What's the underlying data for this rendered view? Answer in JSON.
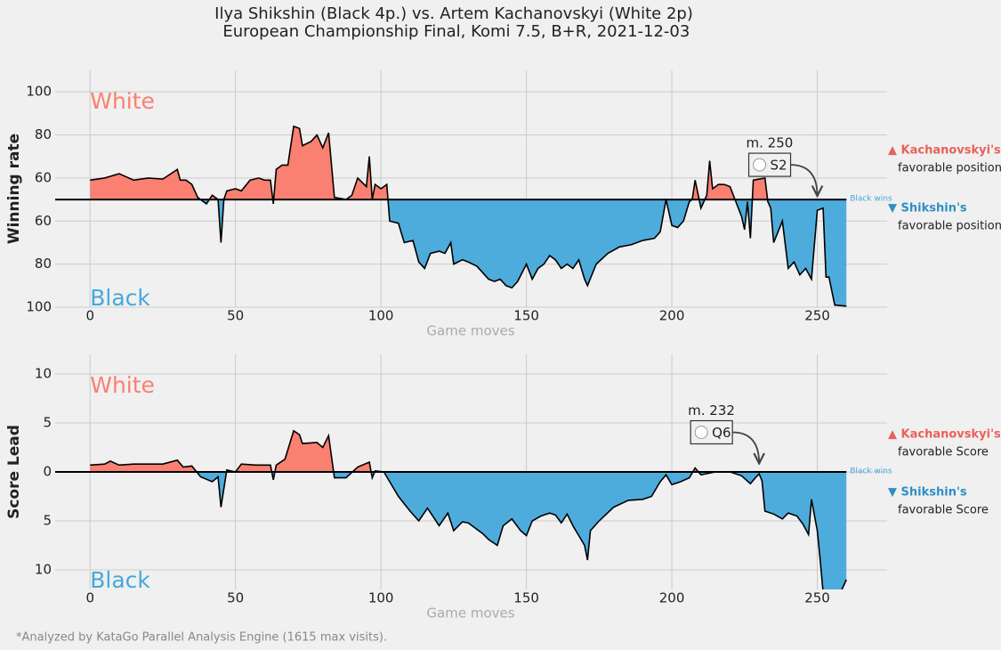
{
  "title": [
    "Ilya Shikshin (Black 4p.) vs. Artem Kachanovskyi (White 2p)",
    " European Championship Final, Komi 7.5, B+R, 2021-12-03"
  ],
  "footnote": "*Analyzed by KataGo Parallel Analysis Engine (1615 max visits).",
  "chart_data": [
    {
      "type": "area",
      "ylabel": "Winning rate",
      "xlabel": "Game moves",
      "upper_label": "White",
      "lower_label": "Black",
      "end_label": "Black wins",
      "upper_color": "#fa8072",
      "lower_color": "#45a8db",
      "baseline": 50,
      "xlim": [
        -12,
        274
      ],
      "xticks": [
        0,
        50,
        100,
        150,
        200,
        250
      ],
      "ylim": [
        0,
        110
      ],
      "yticks": [
        100,
        80,
        60,
        {
          "value": 40,
          "label": "60"
        },
        {
          "value": 20,
          "label": "80"
        },
        {
          "value": 0,
          "label": "100"
        }
      ],
      "grid": true,
      "annotation": {
        "text": "m. 250",
        "label": "S2",
        "x": 250,
        "y": 50
      },
      "legend": [
        {
          "name": "▲ Kachanovskyi's",
          "desc": "favorable position",
          "color": "#e8615a"
        },
        {
          "name": "▼ Shikshin's",
          "desc": "favorable position",
          "color": "#2f8fc4"
        }
      ],
      "x": [
        0,
        5,
        10,
        15,
        20,
        25,
        30,
        31,
        33,
        35,
        37,
        40,
        42,
        44,
        45,
        46,
        47,
        50,
        52,
        55,
        58,
        60,
        62,
        63,
        64,
        66,
        68,
        70,
        72,
        73,
        76,
        78,
        80,
        82,
        84,
        88,
        90,
        92,
        95,
        96,
        97,
        98,
        100,
        102,
        103,
        106,
        108,
        111,
        113,
        115,
        117,
        120,
        122,
        124,
        125,
        128,
        130,
        133,
        135,
        137,
        139,
        141,
        143,
        145,
        147,
        150,
        152,
        154,
        156,
        158,
        160,
        162,
        164,
        166,
        168,
        170,
        171,
        174,
        178,
        182,
        186,
        190,
        194,
        196,
        198,
        200,
        202,
        204,
        206,
        207,
        208,
        210,
        212,
        213,
        214,
        216,
        218,
        220,
        222,
        224,
        225,
        226,
        227,
        228,
        232,
        233,
        234,
        235,
        238,
        240,
        242,
        244,
        246,
        248,
        250,
        252,
        253,
        254,
        256,
        260
      ],
      "values": [
        59,
        60,
        62,
        59,
        60,
        59.5,
        64,
        59,
        59,
        57,
        51,
        48,
        52,
        50,
        30,
        50,
        54,
        55,
        54,
        59,
        60,
        59,
        59,
        48,
        64,
        66,
        66,
        84,
        83,
        75,
        77,
        80,
        74,
        81,
        51,
        50,
        52,
        60,
        56,
        70,
        50,
        57,
        55,
        57,
        40,
        39,
        30,
        31,
        21,
        18,
        25,
        26,
        25,
        30,
        20,
        22,
        21,
        19,
        16,
        13,
        12,
        13,
        10,
        9,
        12,
        20,
        13,
        18,
        20,
        24,
        22,
        18,
        20,
        18,
        22,
        13,
        10,
        20,
        25,
        28,
        29,
        31,
        32,
        35,
        50,
        38,
        37,
        40,
        49,
        50,
        59,
        46,
        52,
        68,
        55,
        57,
        57,
        56,
        49,
        42,
        36,
        49,
        32,
        59,
        60,
        49,
        46,
        30,
        40,
        18,
        21,
        15,
        18,
        13,
        45,
        46,
        14,
        14,
        1,
        0.5
      ]
    },
    {
      "type": "area",
      "ylabel": "Score Lead",
      "xlabel": "Game moves",
      "upper_label": "White",
      "lower_label": "Black",
      "end_label": "Black wins",
      "upper_color": "#fa8072",
      "lower_color": "#45a8db",
      "baseline": 0,
      "xlim": [
        -12,
        274
      ],
      "xticks": [
        0,
        50,
        100,
        150,
        200,
        250
      ],
      "ylim": [
        -12,
        12
      ],
      "yticks": [
        10,
        5,
        0,
        {
          "value": -5,
          "label": "5"
        },
        {
          "value": -10,
          "label": "10"
        }
      ],
      "grid": true,
      "annotation": {
        "text": "m. 232",
        "label": "Q6",
        "x": 230,
        "y": 0.5
      },
      "legend": [
        {
          "name": "▲ Kachanovskyi's",
          "desc": "favorable Score",
          "color": "#e8615a"
        },
        {
          "name": "▼ Shikshin's",
          "desc": "favorable Score",
          "color": "#2f8fc4"
        }
      ],
      "x": [
        0,
        5,
        7,
        10,
        15,
        25,
        30,
        32,
        35,
        38,
        42,
        44,
        45,
        47,
        50,
        52,
        57,
        62,
        63,
        64,
        67,
        70,
        72,
        73,
        78,
        80,
        82,
        84,
        88,
        92,
        96,
        97,
        98,
        101,
        103,
        106,
        110,
        113,
        116,
        120,
        123,
        125,
        128,
        130,
        135,
        137,
        140,
        142,
        145,
        148,
        150,
        152,
        155,
        158,
        160,
        162,
        164,
        166,
        168,
        170,
        171,
        172,
        175,
        180,
        185,
        190,
        193,
        196,
        198,
        200,
        203,
        206,
        208,
        210,
        215,
        220,
        224,
        227,
        229,
        230,
        231,
        232,
        235,
        238,
        240,
        243,
        245,
        247,
        248,
        250,
        251,
        252,
        258,
        260
      ],
      "values": [
        0.7,
        0.8,
        1.1,
        0.7,
        0.8,
        0.8,
        1.2,
        0.5,
        0.6,
        -0.5,
        -1,
        -0.5,
        -3.6,
        0.2,
        0,
        0.8,
        0.7,
        0.7,
        -0.8,
        0.7,
        1.3,
        4.2,
        3.8,
        2.9,
        3.0,
        2.5,
        3.7,
        -0.6,
        -0.6,
        0.5,
        1.0,
        -0.6,
        0.1,
        0,
        -1,
        -2.5,
        -4,
        -5,
        -3.7,
        -5.5,
        -4.2,
        -6,
        -5.1,
        -5.2,
        -6.3,
        -6.9,
        -7.5,
        -5.5,
        -4.8,
        -6,
        -6.5,
        -5,
        -4.5,
        -4.2,
        -4.4,
        -5.2,
        -4.3,
        -5.5,
        -6.5,
        -7.5,
        -9,
        -6,
        -5,
        -3.6,
        -2.9,
        -2.8,
        -2.5,
        -1,
        -0.3,
        -1.3,
        -1,
        -0.6,
        0.4,
        -0.3,
        0,
        0,
        -0.4,
        -1.2,
        -0.5,
        -0.2,
        -0.9,
        -4,
        -4.3,
        -4.8,
        -4.2,
        -4.5,
        -5.3,
        -6.4,
        -2.8,
        -6,
        -9,
        -12.3,
        -12.3,
        -11
      ]
    }
  ]
}
